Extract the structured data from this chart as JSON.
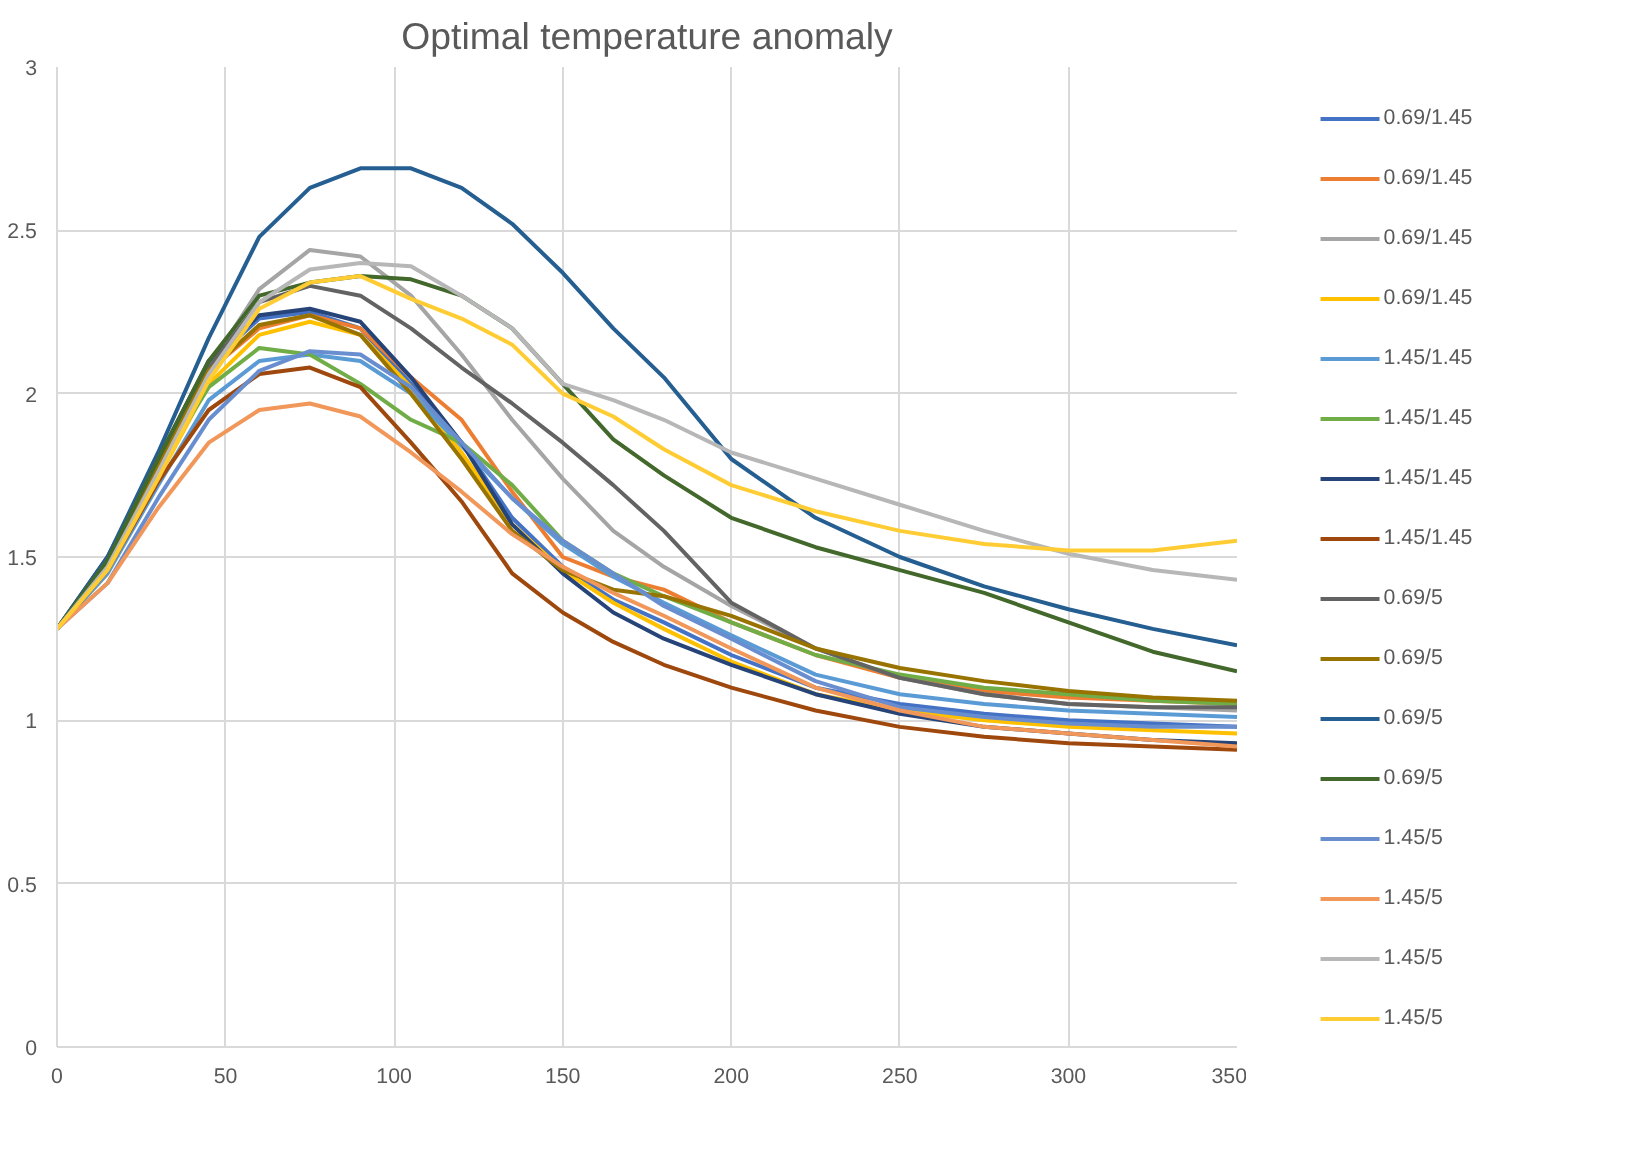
{
  "chart_data": {
    "type": "line",
    "title": "Optimal temperature anomaly",
    "x": [
      0,
      15,
      30,
      45,
      60,
      75,
      90,
      105,
      120,
      135,
      150,
      165,
      180,
      200,
      225,
      250,
      275,
      300,
      325,
      350
    ],
    "xlim": [
      0,
      350
    ],
    "xticks": [
      0,
      50,
      100,
      150,
      200,
      250,
      300,
      350
    ],
    "ylim": [
      0,
      3
    ],
    "yticks": [
      0,
      0.5,
      1,
      1.5,
      2,
      2.5,
      3
    ],
    "grid": true,
    "legend": "right",
    "marker": "none",
    "line_style": "solid",
    "series": [
      {
        "name": "0.69/1.45",
        "color": "#4472c4",
        "values": [
          1.28,
          1.49,
          1.79,
          2.09,
          2.23,
          2.25,
          2.2,
          2.03,
          1.85,
          1.62,
          1.47,
          1.37,
          1.3,
          1.2,
          1.1,
          1.05,
          1.02,
          1.0,
          0.99,
          0.98
        ]
      },
      {
        "name": "0.69/1.45",
        "color": "#ed7d31",
        "values": [
          1.28,
          1.48,
          1.77,
          2.07,
          2.2,
          2.24,
          2.2,
          2.05,
          1.92,
          1.7,
          1.5,
          1.44,
          1.4,
          1.3,
          1.2,
          1.13,
          1.09,
          1.07,
          1.06,
          1.05
        ]
      },
      {
        "name": "0.69/1.45",
        "color": "#a5a5a5",
        "values": [
          1.28,
          1.48,
          1.78,
          2.08,
          2.32,
          2.44,
          2.42,
          2.3,
          2.12,
          1.92,
          1.74,
          1.58,
          1.47,
          1.35,
          1.22,
          1.13,
          1.08,
          1.05,
          1.04,
          1.03
        ]
      },
      {
        "name": "0.69/1.45",
        "color": "#ffc000",
        "values": [
          1.28,
          1.45,
          1.74,
          2.03,
          2.18,
          2.22,
          2.18,
          2.02,
          1.82,
          1.6,
          1.46,
          1.36,
          1.28,
          1.18,
          1.08,
          1.03,
          1.0,
          0.98,
          0.97,
          0.96
        ]
      },
      {
        "name": "1.45/1.45",
        "color": "#5b9bd5",
        "values": [
          1.28,
          1.45,
          1.72,
          1.98,
          2.1,
          2.12,
          2.1,
          2.0,
          1.84,
          1.68,
          1.54,
          1.44,
          1.36,
          1.26,
          1.14,
          1.08,
          1.05,
          1.03,
          1.02,
          1.01
        ]
      },
      {
        "name": "1.45/1.45",
        "color": "#70ad47",
        "values": [
          1.28,
          1.47,
          1.77,
          2.02,
          2.14,
          2.12,
          2.03,
          1.92,
          1.85,
          1.72,
          1.55,
          1.45,
          1.38,
          1.3,
          1.2,
          1.14,
          1.1,
          1.08,
          1.06,
          1.05
        ]
      },
      {
        "name": "1.45/1.45",
        "color": "#264478",
        "values": [
          1.28,
          1.5,
          1.8,
          2.1,
          2.24,
          2.26,
          2.22,
          2.05,
          1.85,
          1.6,
          1.45,
          1.33,
          1.25,
          1.17,
          1.08,
          1.02,
          0.98,
          0.96,
          0.94,
          0.93
        ]
      },
      {
        "name": "1.45/1.45",
        "color": "#9e480e",
        "values": [
          1.28,
          1.46,
          1.73,
          1.95,
          2.06,
          2.08,
          2.02,
          1.85,
          1.67,
          1.45,
          1.33,
          1.24,
          1.17,
          1.1,
          1.03,
          0.98,
          0.95,
          0.93,
          0.92,
          0.91
        ]
      },
      {
        "name": "0.69/5",
        "color": "#636363",
        "values": [
          1.28,
          1.48,
          1.78,
          2.08,
          2.28,
          2.33,
          2.3,
          2.2,
          2.08,
          1.97,
          1.85,
          1.72,
          1.58,
          1.36,
          1.22,
          1.13,
          1.08,
          1.05,
          1.04,
          1.04
        ]
      },
      {
        "name": "0.69/5",
        "color": "#997300",
        "values": [
          1.28,
          1.48,
          1.78,
          2.07,
          2.21,
          2.24,
          2.18,
          2.0,
          1.8,
          1.58,
          1.46,
          1.4,
          1.38,
          1.32,
          1.22,
          1.16,
          1.12,
          1.09,
          1.07,
          1.06
        ]
      },
      {
        "name": "0.69/5",
        "color": "#255e91",
        "values": [
          1.28,
          1.5,
          1.82,
          2.17,
          2.48,
          2.63,
          2.69,
          2.69,
          2.63,
          2.52,
          2.37,
          2.2,
          2.05,
          1.8,
          1.62,
          1.5,
          1.41,
          1.34,
          1.28,
          1.23
        ]
      },
      {
        "name": "0.69/5",
        "color": "#43682b",
        "values": [
          1.28,
          1.49,
          1.8,
          2.1,
          2.3,
          2.34,
          2.36,
          2.35,
          2.3,
          2.2,
          2.03,
          1.86,
          1.75,
          1.62,
          1.53,
          1.46,
          1.39,
          1.3,
          1.21,
          1.15
        ]
      },
      {
        "name": "1.45/5",
        "color": "#698ed0",
        "values": [
          1.28,
          1.42,
          1.68,
          1.92,
          2.07,
          2.13,
          2.12,
          2.02,
          1.85,
          1.68,
          1.55,
          1.45,
          1.35,
          1.25,
          1.12,
          1.04,
          1.01,
          0.99,
          0.98,
          0.98
        ]
      },
      {
        "name": "1.45/5",
        "color": "#f1975a",
        "values": [
          1.28,
          1.42,
          1.65,
          1.85,
          1.95,
          1.97,
          1.93,
          1.82,
          1.7,
          1.57,
          1.47,
          1.39,
          1.32,
          1.22,
          1.1,
          1.03,
          0.98,
          0.96,
          0.94,
          0.92
        ]
      },
      {
        "name": "1.45/5",
        "color": "#b7b7b7",
        "values": [
          1.28,
          1.47,
          1.76,
          2.06,
          2.28,
          2.38,
          2.4,
          2.39,
          2.3,
          2.2,
          2.03,
          1.98,
          1.92,
          1.82,
          1.74,
          1.66,
          1.58,
          1.51,
          1.46,
          1.43
        ]
      },
      {
        "name": "1.45/5",
        "color": "#ffcd33",
        "values": [
          1.28,
          1.46,
          1.74,
          2.04,
          2.26,
          2.34,
          2.36,
          2.29,
          2.23,
          2.15,
          2.0,
          1.93,
          1.83,
          1.72,
          1.64,
          1.58,
          1.54,
          1.52,
          1.52,
          1.55
        ]
      }
    ]
  }
}
